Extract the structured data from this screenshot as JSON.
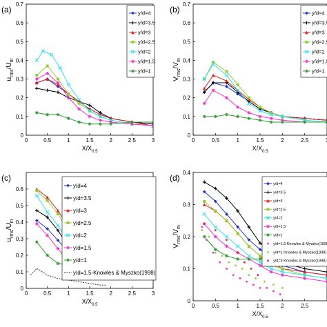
{
  "chart_data": [
    {
      "type": "line",
      "panel_label": "(a)",
      "ylabel": "u_rms/U_m",
      "xlabel": "X/X_0.5",
      "xlim": [
        0,
        3
      ],
      "ylim": [
        0,
        0.7
      ],
      "xticks": [
        "0",
        "0.5",
        "1",
        "1.5",
        "2",
        "2.5",
        "3"
      ],
      "yticks": [
        "0",
        "0.1",
        "0.2",
        "0.3",
        "0.4",
        "0.5",
        "0.6",
        "0.7"
      ],
      "legend_position": "top-right",
      "series": [
        {
          "name": "y/d=4",
          "color": "#2233cc",
          "marker": "diamond",
          "x": [
            0.25,
            0.5,
            0.75,
            1.0,
            1.25,
            1.5,
            1.75,
            2.0,
            2.5,
            3.0
          ],
          "y": [
            0.28,
            0.3,
            0.26,
            0.22,
            0.18,
            0.14,
            0.11,
            0.09,
            0.07,
            0.06
          ]
        },
        {
          "name": "y/d=3.5",
          "color": "#000000",
          "marker": "plus",
          "x": [
            0.25,
            0.5,
            0.75,
            1.0,
            1.25,
            1.5,
            1.75,
            2.0,
            2.5,
            3.0
          ],
          "y": [
            0.25,
            0.24,
            0.23,
            0.2,
            0.18,
            0.16,
            0.12,
            0.09,
            0.07,
            0.06
          ]
        },
        {
          "name": "y/d=3",
          "color": "#dd2222",
          "marker": "triangle",
          "x": [
            0.25,
            0.5,
            0.75,
            1.0,
            1.25,
            1.5,
            1.75,
            2.0,
            2.5,
            3.0
          ],
          "y": [
            0.28,
            0.3,
            0.27,
            0.22,
            0.18,
            0.14,
            0.11,
            0.09,
            0.07,
            0.05
          ]
        },
        {
          "name": "y/d=2.5",
          "color": "#99cc33",
          "marker": "square",
          "x": [
            0.25,
            0.5,
            0.75,
            1.0,
            1.25,
            1.5,
            1.75,
            2.0,
            2.5,
            3.0
          ],
          "y": [
            0.32,
            0.37,
            0.3,
            0.22,
            0.17,
            0.13,
            0.1,
            0.08,
            0.06,
            0.05
          ]
        },
        {
          "name": "y/d=2",
          "color": "#33e0ee",
          "marker": "x",
          "x": [
            0.25,
            0.4,
            0.6,
            0.8,
            1.0,
            1.25,
            1.5,
            1.75,
            2.0,
            2.5,
            3.0
          ],
          "y": [
            0.4,
            0.45,
            0.43,
            0.36,
            0.27,
            0.19,
            0.13,
            0.1,
            0.08,
            0.06,
            0.05
          ]
        },
        {
          "name": "y/d=1.5",
          "color": "#ee33cc",
          "marker": "star",
          "x": [
            0.25,
            0.5,
            0.75,
            1.0,
            1.25,
            1.5,
            1.75,
            2.0,
            2.5,
            3.0
          ],
          "y": [
            0.3,
            0.33,
            0.28,
            0.2,
            0.14,
            0.1,
            0.08,
            0.07,
            0.06,
            0.05
          ]
        },
        {
          "name": "y/d=1",
          "color": "#339933",
          "marker": "star",
          "x": [
            0.25,
            0.5,
            0.75,
            1.0,
            1.25,
            1.5,
            1.75,
            2.0,
            2.5,
            3.0
          ],
          "y": [
            0.12,
            0.11,
            0.11,
            0.09,
            0.07,
            0.06,
            0.06,
            0.06,
            0.07,
            0.07
          ]
        }
      ]
    },
    {
      "type": "line",
      "panel_label": "(b)",
      "ylabel": "V_rms/V_m",
      "xlabel": "X/X_0.5",
      "xlim": [
        0,
        3
      ],
      "ylim": [
        0,
        0.7
      ],
      "xticks": [
        "0",
        "0.5",
        "1",
        "1.5",
        "2",
        "2.5",
        "3"
      ],
      "yticks": [
        "0",
        "0.1",
        "0.2",
        "0.3",
        "0.4",
        "0.5",
        "0.6",
        "0.7"
      ],
      "legend_position": "top-right",
      "series": [
        {
          "name": "y/d=4",
          "color": "#2233cc",
          "marker": "diamond",
          "x": [
            0.25,
            0.45,
            0.75,
            1.0,
            1.25,
            1.5,
            1.75,
            2.0,
            2.5,
            3.0
          ],
          "y": [
            0.23,
            0.28,
            0.26,
            0.22,
            0.18,
            0.14,
            0.12,
            0.1,
            0.09,
            0.08
          ]
        },
        {
          "name": "y/d=3.5",
          "color": "#000000",
          "marker": "plus",
          "x": [
            0.25,
            0.45,
            0.75,
            1.0,
            1.25,
            1.5,
            1.75,
            2.0,
            2.5,
            3.0
          ],
          "y": [
            0.23,
            0.28,
            0.28,
            0.23,
            0.18,
            0.14,
            0.12,
            0.1,
            0.09,
            0.08
          ]
        },
        {
          "name": "y/d=3",
          "color": "#dd2222",
          "marker": "triangle",
          "x": [
            0.25,
            0.45,
            0.75,
            1.0,
            1.25,
            1.5,
            1.75,
            2.0,
            2.5,
            3.0
          ],
          "y": [
            0.25,
            0.32,
            0.29,
            0.24,
            0.19,
            0.15,
            0.12,
            0.1,
            0.09,
            0.08
          ]
        },
        {
          "name": "y/d=2.5",
          "color": "#99cc33",
          "marker": "square",
          "x": [
            0.25,
            0.45,
            0.75,
            1.0,
            1.25,
            1.5,
            1.75,
            2.0,
            2.5,
            3.0
          ],
          "y": [
            0.3,
            0.39,
            0.34,
            0.27,
            0.2,
            0.15,
            0.12,
            0.1,
            0.08,
            0.07
          ]
        },
        {
          "name": "y/d=2",
          "color": "#33e0ee",
          "marker": "x",
          "x": [
            0.25,
            0.45,
            0.75,
            1.0,
            1.25,
            1.5,
            1.75,
            2.0,
            2.5,
            3.0
          ],
          "y": [
            0.3,
            0.38,
            0.32,
            0.24,
            0.17,
            0.13,
            0.11,
            0.1,
            0.08,
            0.07
          ]
        },
        {
          "name": "y/d=1.5",
          "color": "#ee33cc",
          "marker": "star",
          "x": [
            0.25,
            0.45,
            0.75,
            1.0,
            1.25,
            1.5,
            1.75,
            2.0,
            2.5,
            3.0
          ],
          "y": [
            0.17,
            0.24,
            0.2,
            0.15,
            0.12,
            0.1,
            0.09,
            0.08,
            0.07,
            0.07
          ]
        },
        {
          "name": "y/d=1",
          "color": "#339933",
          "marker": "star",
          "x": [
            0.25,
            0.5,
            0.75,
            1.0,
            1.25,
            1.5,
            1.75,
            2.0,
            2.5,
            3.0
          ],
          "y": [
            0.1,
            0.1,
            0.11,
            0.1,
            0.09,
            0.08,
            0.07,
            0.07,
            0.07,
            0.07
          ]
        }
      ]
    },
    {
      "type": "line",
      "panel_label": "(c)",
      "ylabel": "u_rms/U_m",
      "xlabel": "X/X_0.5",
      "xlim": [
        0,
        3
      ],
      "ylim": [
        0,
        0.7
      ],
      "xticks": [
        "0",
        "0.5",
        "1",
        "1.5",
        "2",
        "2.5",
        "3"
      ],
      "yticks": [
        "0",
        "0.1",
        "0.2",
        "0.3",
        "0.4",
        "0.5",
        "0.6"
      ],
      "legend_position": "top-right",
      "series": [
        {
          "name": "y/d=4",
          "color": "#2233cc",
          "marker": "diamond",
          "x": [
            0.25,
            0.5,
            0.75,
            1.0,
            1.25,
            1.5,
            1.75,
            2.0,
            2.5,
            3.0
          ],
          "y": [
            0.41,
            0.36,
            0.29,
            0.22,
            0.17,
            0.13,
            0.11,
            0.09,
            0.08,
            0.07
          ]
        },
        {
          "name": "y/d=3.5",
          "color": "#000000",
          "marker": "plus",
          "x": [
            0.25,
            0.5,
            0.75,
            1.0,
            1.25,
            1.5,
            1.75,
            2.0,
            2.5,
            3.0
          ],
          "y": [
            0.47,
            0.43,
            0.35,
            0.25,
            0.18,
            0.14,
            0.11,
            0.09,
            0.08,
            0.07
          ]
        },
        {
          "name": "y/d=3",
          "color": "#dd2222",
          "marker": "triangle",
          "x": [
            0.25,
            0.5,
            0.75,
            1.0,
            1.25,
            1.5,
            1.75,
            2.0,
            2.5,
            3.0
          ],
          "y": [
            0.6,
            0.55,
            0.47,
            0.37,
            0.25,
            0.16,
            0.12,
            0.1,
            0.08,
            0.07
          ]
        },
        {
          "name": "y/d=2.5",
          "color": "#99cc33",
          "marker": "square",
          "x": [
            0.25,
            0.5,
            0.75,
            1.0,
            1.25,
            1.5,
            1.75,
            2.0,
            2.5,
            3.0
          ],
          "y": [
            0.59,
            0.53,
            0.45,
            0.34,
            0.23,
            0.15,
            0.12,
            0.1,
            0.08,
            0.07
          ]
        },
        {
          "name": "y/d=2",
          "color": "#33e0ee",
          "marker": "x",
          "x": [
            0.25,
            0.5,
            0.75,
            1.0,
            1.25,
            1.5,
            1.75,
            2.0,
            2.5,
            3.0
          ],
          "y": [
            0.56,
            0.46,
            0.38,
            0.28,
            0.2,
            0.14,
            0.11,
            0.09,
            0.08,
            0.07
          ]
        },
        {
          "name": "y/d=1.5",
          "color": "#ee33cc",
          "marker": "star",
          "x": [
            0.25,
            0.5,
            0.75,
            1.0,
            1.25,
            1.5,
            1.75,
            2.0,
            2.5,
            3.0
          ],
          "y": [
            0.39,
            0.32,
            0.24,
            0.16,
            0.1,
            0.08,
            0.07,
            0.07,
            0.06,
            0.06
          ]
        },
        {
          "name": "y/d=1",
          "color": "#339933",
          "marker": "star",
          "x": [
            0.25,
            0.5,
            0.75,
            1.0,
            1.25,
            1.5,
            1.75,
            2.0,
            2.5,
            3.0
          ],
          "y": [
            0.28,
            0.2,
            0.15,
            0.14,
            0.13,
            0.13,
            0.13,
            0.13,
            0.13,
            0.13
          ]
        },
        {
          "name": "y/d=1.5-Knowles & Myszko(1998)",
          "color": "#333333",
          "marker": "none",
          "dashed": true,
          "x": [
            0.1,
            0.25,
            0.5,
            0.75,
            1.0,
            1.25,
            1.5,
            1.75,
            1.9
          ],
          "y": [
            0.08,
            0.12,
            0.08,
            0.06,
            0.05,
            0.04,
            0.03,
            0.02,
            0.02
          ]
        }
      ]
    },
    {
      "type": "line",
      "panel_label": "(d)",
      "ylabel": "V_rms/V_m",
      "xlabel": "X/X_0.5",
      "xlim": [
        0,
        3
      ],
      "ylim": [
        0,
        0.4
      ],
      "xticks": [
        "0",
        "0.5",
        "1",
        "1.5",
        "2",
        "2.5"
      ],
      "yticks": [
        "0",
        "0.1",
        "0.2",
        "0.3",
        "0.4"
      ],
      "legend_position": "top-right",
      "series": [
        {
          "name": "y/d=4",
          "color": "#2233cc",
          "marker": "diamond",
          "x": [
            0.25,
            0.5,
            0.75,
            1.0,
            1.25,
            1.5,
            1.75,
            2.0,
            2.5,
            3.0
          ],
          "y": [
            0.34,
            0.31,
            0.27,
            0.23,
            0.19,
            0.16,
            0.13,
            0.11,
            0.09,
            0.08
          ]
        },
        {
          "name": "y/d=3.5",
          "color": "#000000",
          "marker": "plus",
          "x": [
            0.25,
            0.5,
            0.75,
            1.0,
            1.25,
            1.5,
            1.75,
            2.0,
            2.5,
            3.0
          ],
          "y": [
            0.37,
            0.35,
            0.32,
            0.28,
            0.23,
            0.18,
            0.15,
            0.12,
            0.1,
            0.09
          ]
        },
        {
          "name": "y/d=3",
          "color": "#dd2222",
          "marker": "triangle",
          "x": [
            0.25,
            0.5,
            0.75,
            1.0,
            1.25,
            1.5,
            1.75,
            2.0,
            2.5,
            3.0
          ],
          "y": [
            0.3,
            0.28,
            0.25,
            0.21,
            0.17,
            0.14,
            0.12,
            0.1,
            0.09,
            0.08
          ]
        },
        {
          "name": "y/d=2.5",
          "color": "#99cc33",
          "marker": "square",
          "x": [
            0.25,
            0.5,
            0.75,
            1.0,
            1.25,
            1.5,
            1.75,
            2.0,
            2.5,
            3.0
          ],
          "y": [
            0.31,
            0.28,
            0.25,
            0.21,
            0.17,
            0.14,
            0.11,
            0.1,
            0.08,
            0.07
          ]
        },
        {
          "name": "y/d=2",
          "color": "#33e0ee",
          "marker": "x",
          "x": [
            0.25,
            0.5,
            0.75,
            1.0,
            1.25,
            1.5,
            1.75,
            2.0,
            2.5,
            3.0
          ],
          "y": [
            0.27,
            0.23,
            0.2,
            0.17,
            0.14,
            0.12,
            0.1,
            0.09,
            0.08,
            0.07
          ]
        },
        {
          "name": "y/d=1.5",
          "color": "#ee33cc",
          "marker": "star",
          "x": [
            0.25,
            0.5,
            0.75,
            1.0,
            1.25,
            1.5,
            1.75,
            2.0,
            2.5,
            3.0
          ],
          "y": [
            0.24,
            0.2,
            0.17,
            0.15,
            0.13,
            0.11,
            0.09,
            0.08,
            0.07,
            0.06
          ]
        },
        {
          "name": "y/d=1",
          "color": "#339933",
          "marker": "star",
          "x": [
            0.25,
            0.5,
            0.75,
            1.0,
            1.25,
            1.5,
            1.75,
            2.0,
            2.5,
            3.0
          ],
          "y": [
            0.2,
            0.16,
            0.14,
            0.13,
            0.13,
            0.13,
            0.14,
            0.15,
            0.16,
            0.16
          ]
        },
        {
          "name": "y/d=1.5 Knowles & Myszko(1998)",
          "color": "#ee33cc",
          "marker": "dot",
          "scatter": true,
          "x": [
            0.2,
            0.3,
            0.45,
            0.6,
            0.75,
            0.9,
            1.05,
            1.2,
            1.35,
            1.5,
            1.65,
            1.8,
            1.95
          ],
          "y": [
            0.23,
            0.19,
            0.15,
            0.12,
            0.1,
            0.08,
            0.07,
            0.06,
            0.05,
            0.04,
            0.04,
            0.03,
            0.02
          ]
        },
        {
          "name": "y/d=1 Knowles & Myszko(1998)",
          "color": "#99cc33",
          "marker": "dot",
          "scatter": true,
          "x": [
            0.2,
            0.35,
            0.5,
            0.65,
            0.8,
            0.95,
            1.1,
            1.25,
            1.4,
            1.6,
            1.8,
            2.0
          ],
          "y": [
            0.22,
            0.2,
            0.15,
            0.14,
            0.12,
            0.11,
            0.1,
            0.08,
            0.07,
            0.06,
            0.05,
            0.04
          ]
        },
        {
          "name": "y/d=3 Knowles & Myszko(1998)",
          "color": "#dd2222",
          "marker": "dot",
          "scatter": true,
          "x": [
            0.25,
            0.5,
            0.75,
            1.0,
            1.15,
            1.3,
            1.45
          ],
          "y": [
            0.24,
            0.22,
            0.19,
            0.15,
            0.12,
            0.1,
            0.08
          ]
        }
      ]
    }
  ]
}
